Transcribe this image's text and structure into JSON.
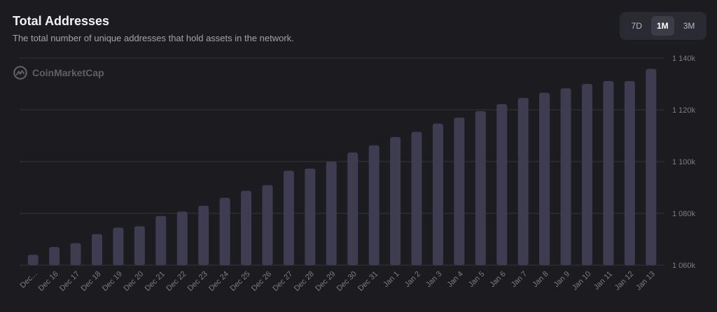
{
  "header": {
    "title": "Total Addresses",
    "subtitle": "The total number of unique addresses that hold assets in the network."
  },
  "range_buttons": [
    {
      "label": "7D",
      "active": false
    },
    {
      "label": "1M",
      "active": true
    },
    {
      "label": "3M",
      "active": false
    }
  ],
  "watermark": {
    "text": "CoinMarketCap",
    "icon": "coinmarketcap-logo-icon"
  },
  "colors": {
    "background": "#1c1b1f",
    "bar": "#3e3c51",
    "grid": "#35343c",
    "axis_text": "#7c7c86"
  },
  "chart_data": {
    "type": "bar",
    "categories": [
      "Dec...",
      "Dec 16",
      "Dec 17",
      "Dec 18",
      "Dec 19",
      "Dec 20",
      "Dec 21",
      "Dec 22",
      "Dec 23",
      "Dec 24",
      "Dec 25",
      "Dec 26",
      "Dec 27",
      "Dec 28",
      "Dec 29",
      "Dec 30",
      "Dec 31",
      "Jan 1",
      "Jan 2",
      "Jan 3",
      "Jan 4",
      "Jan 5",
      "Jan 6",
      "Jan 7",
      "Jan 8",
      "Jan 9",
      "Jan 10",
      "Jan 11",
      "Jan 12",
      "Jan 13"
    ],
    "values": [
      1064000,
      1067000,
      1068500,
      1072000,
      1074500,
      1075000,
      1079000,
      1080700,
      1082900,
      1086000,
      1088700,
      1090900,
      1096500,
      1097300,
      1100000,
      1103500,
      1106300,
      1109500,
      1111500,
      1114700,
      1117000,
      1119500,
      1122200,
      1124600,
      1126600,
      1128300,
      1130000,
      1131100,
      1131100,
      1135800
    ],
    "yticks": [
      1060000,
      1080000,
      1100000,
      1120000,
      1140000
    ],
    "ytick_labels": [
      "1 060k",
      "1 080k",
      "1 100k",
      "1 120k",
      "1 140k"
    ],
    "ylim": [
      1060000,
      1140000
    ],
    "y_axis_position": "right",
    "grid": true,
    "title": "Total Addresses",
    "xlabel": "",
    "ylabel": ""
  }
}
